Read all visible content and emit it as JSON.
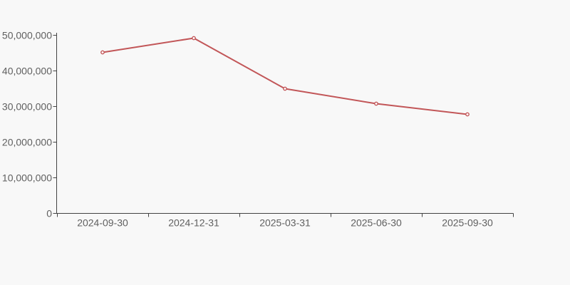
{
  "chart_data": {
    "type": "line",
    "title": "",
    "xlabel": "",
    "ylabel": "",
    "x": [
      "2024-09-30",
      "2024-12-31",
      "2025-03-31",
      "2025-06-30",
      "2025-09-30"
    ],
    "values": [
      45200000,
      49200000,
      35000000,
      30800000,
      27800000
    ],
    "y_ticks": [
      0,
      10000000,
      20000000,
      30000000,
      40000000,
      50000000
    ],
    "y_tick_labels": [
      "0",
      "10,000,000",
      "20,000,000",
      "30,000,000",
      "40,000,000",
      "50,000,000"
    ],
    "ylim": [
      0,
      50000000
    ],
    "grid": false,
    "legend_position": "none",
    "marker_style": "hollow-circle",
    "colors": {
      "line": "#c25658",
      "marker_fill": "#ffffff",
      "axis": "#434343",
      "tick_label": "#606060",
      "background": "#f8f8f8"
    }
  }
}
